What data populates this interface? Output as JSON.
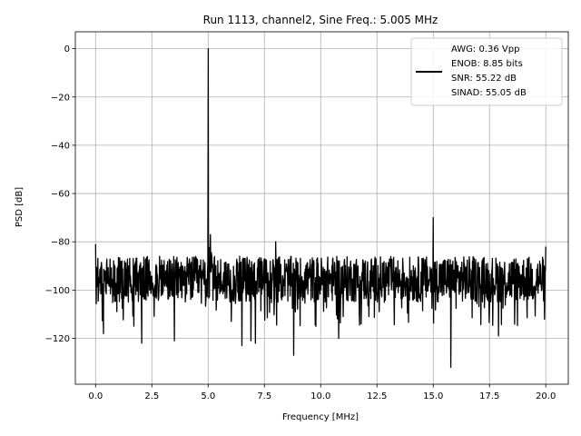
{
  "chart_data": {
    "type": "line",
    "title": "Run 1113, channel2, Sine Freq.: 5.005 MHz",
    "xlabel": "Frequency [MHz]",
    "ylabel": "PSD [dB]",
    "xlim": [
      -0.9,
      21.0
    ],
    "ylim": [
      -139,
      7
    ],
    "xticks": [
      0.0,
      2.5,
      5.0,
      7.5,
      10.0,
      12.5,
      15.0,
      17.5,
      20.0
    ],
    "xtick_labels": [
      "0.0",
      "2.5",
      "5.0",
      "7.5",
      "10.0",
      "12.5",
      "15.0",
      "17.5",
      "20.0"
    ],
    "yticks": [
      0,
      -20,
      -40,
      -60,
      -80,
      -100,
      -120
    ],
    "ytick_labels": [
      "0",
      "−20",
      "−40",
      "−60",
      "−80",
      "−100",
      "−120"
    ],
    "grid": true,
    "legend_position": "top-right",
    "legend_lines": [
      "AWG: 0.36 Vpp",
      "ENOB: 8.85 bits",
      "SNR: 55.22 dB",
      "SINAD: 55.05 dB"
    ],
    "series": [
      {
        "color": "#000000",
        "x_range": [
          0.0,
          20.0
        ],
        "noise_floor_db": -95,
        "noise_band_db": [
          -105,
          -86
        ],
        "peaks": [
          {
            "x": 5.005,
            "y": 0
          },
          {
            "x": 15.0,
            "y": -70
          },
          {
            "x": 0.0,
            "y": -81
          },
          {
            "x": 20.0,
            "y": -82
          },
          {
            "x": 8.0,
            "y": -80
          },
          {
            "x": 5.1,
            "y": -77
          }
        ],
        "dips": [
          {
            "x": 15.78,
            "y": -132
          },
          {
            "x": 8.8,
            "y": -127
          },
          {
            "x": 6.5,
            "y": -123
          },
          {
            "x": 2.05,
            "y": -122
          },
          {
            "x": 3.5,
            "y": -121
          },
          {
            "x": 7.1,
            "y": -122
          },
          {
            "x": 10.8,
            "y": -120
          },
          {
            "x": 17.9,
            "y": -119
          },
          {
            "x": 0.35,
            "y": -118
          },
          {
            "x": 6.9,
            "y": -121
          }
        ]
      }
    ]
  }
}
